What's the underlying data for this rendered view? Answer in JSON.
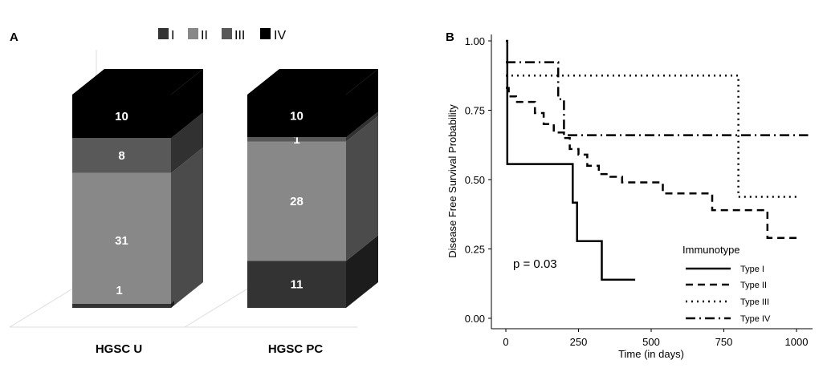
{
  "panels": {
    "a": "A",
    "b": "B"
  },
  "chart_data": [
    {
      "type": "bar",
      "stacked": true,
      "style": "3d",
      "legend_position": "top",
      "categories": [
        "HGSC U",
        "HGSC PC"
      ],
      "series": [
        {
          "name": "I",
          "values": [
            0,
            11
          ],
          "labels": [
            "",
            "11"
          ],
          "color": "#333333"
        },
        {
          "name": "II",
          "values": [
            31,
            28
          ],
          "labels": [
            "31",
            "28"
          ],
          "color": "#888888"
        },
        {
          "name": "III",
          "values": [
            8,
            1
          ],
          "labels": [
            "8",
            "1"
          ],
          "color": "#595959"
        },
        {
          "name": "IV",
          "values": [
            10,
            10
          ],
          "labels": [
            "10",
            "10"
          ],
          "color": "#000000"
        }
      ],
      "extra_labels": [
        {
          "category": "HGSC U",
          "text": "1"
        }
      ]
    },
    {
      "type": "line",
      "subtype": "kaplan-meier",
      "xlabel": "Time (in days)",
      "ylabel": "Disease Free Survival Probability",
      "xlim": [
        0,
        1040
      ],
      "ylim": [
        0,
        1.05
      ],
      "x_ticks": [
        0,
        250,
        500,
        750,
        1000
      ],
      "y_ticks": [
        "0.00",
        "0.25",
        "0.50",
        "0.75",
        "1.00"
      ],
      "grid": false,
      "legend_title": "Immunotype",
      "legend_position": "bottom-right",
      "annotation": "p = 0.03",
      "series": [
        {
          "name": "Type I",
          "dash": "solid",
          "x": [
            0,
            5,
            5,
            230,
            230,
            245,
            245,
            330,
            330,
            445
          ],
          "y": [
            1.0,
            1.0,
            0.556,
            0.556,
            0.417,
            0.417,
            0.278,
            0.278,
            0.139,
            0.139
          ]
        },
        {
          "name": "Type II",
          "dash": "dashed",
          "x": [
            0,
            10,
            10,
            35,
            35,
            100,
            100,
            130,
            130,
            165,
            165,
            200,
            200,
            220,
            220,
            250,
            250,
            280,
            280,
            320,
            320,
            360,
            360,
            400,
            400,
            540,
            540,
            710,
            710,
            900,
            900,
            1000
          ],
          "y": [
            0.83,
            0.83,
            0.8,
            0.8,
            0.78,
            0.78,
            0.74,
            0.74,
            0.7,
            0.7,
            0.67,
            0.67,
            0.65,
            0.65,
            0.61,
            0.61,
            0.59,
            0.59,
            0.55,
            0.55,
            0.52,
            0.52,
            0.51,
            0.51,
            0.49,
            0.49,
            0.45,
            0.45,
            0.39,
            0.39,
            0.29,
            0.29
          ]
        },
        {
          "name": "Type III",
          "dash": "dotted",
          "x": [
            0,
            800,
            800,
            1000
          ],
          "y": [
            0.875,
            0.875,
            0.438,
            0.438
          ]
        },
        {
          "name": "Type IV",
          "dash": "dashdot",
          "x": [
            0,
            180,
            180,
            200,
            200,
            1040
          ],
          "y": [
            0.923,
            0.923,
            0.79,
            0.79,
            0.66,
            0.66
          ]
        }
      ]
    }
  ]
}
